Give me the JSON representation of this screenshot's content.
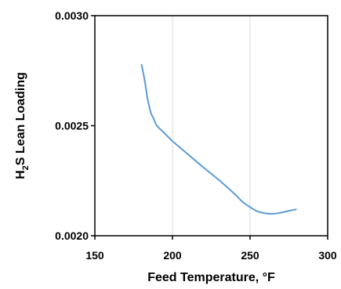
{
  "chart_data": {
    "type": "line",
    "xlabel": "Feed Temperature, °F",
    "ylabel": "H₂S Lean Loading",
    "ylabel_parts": {
      "prefix": "H",
      "subscript": "2",
      "suffix": "S Lean Loading"
    },
    "xlim": [
      150,
      300
    ],
    "ylim": [
      0.002,
      0.003
    ],
    "x_ticks": [
      150,
      200,
      250,
      300
    ],
    "x_tick_labels": [
      "150",
      "200",
      "250",
      "300"
    ],
    "y_ticks": [
      0.002,
      0.0025,
      0.003
    ],
    "y_tick_labels": [
      "0.0020",
      "0.0025",
      "0.0030"
    ],
    "grid": "vertical",
    "legend": "none",
    "series": [
      {
        "color": "#5b9bd5",
        "x": [
          180,
          182,
          184,
          185,
          186,
          188,
          190,
          195,
          200,
          210,
          220,
          230,
          240,
          245,
          250,
          255,
          260,
          265,
          270,
          275,
          280
        ],
        "y": [
          0.00278,
          0.00271,
          0.00262,
          0.00259,
          0.00256,
          0.00253,
          0.0025,
          0.002465,
          0.00243,
          0.00237,
          0.00231,
          0.002253,
          0.00219,
          0.002155,
          0.00213,
          0.00211,
          0.002102,
          0.0021,
          0.002105,
          0.002113,
          0.00212
        ]
      }
    ]
  }
}
